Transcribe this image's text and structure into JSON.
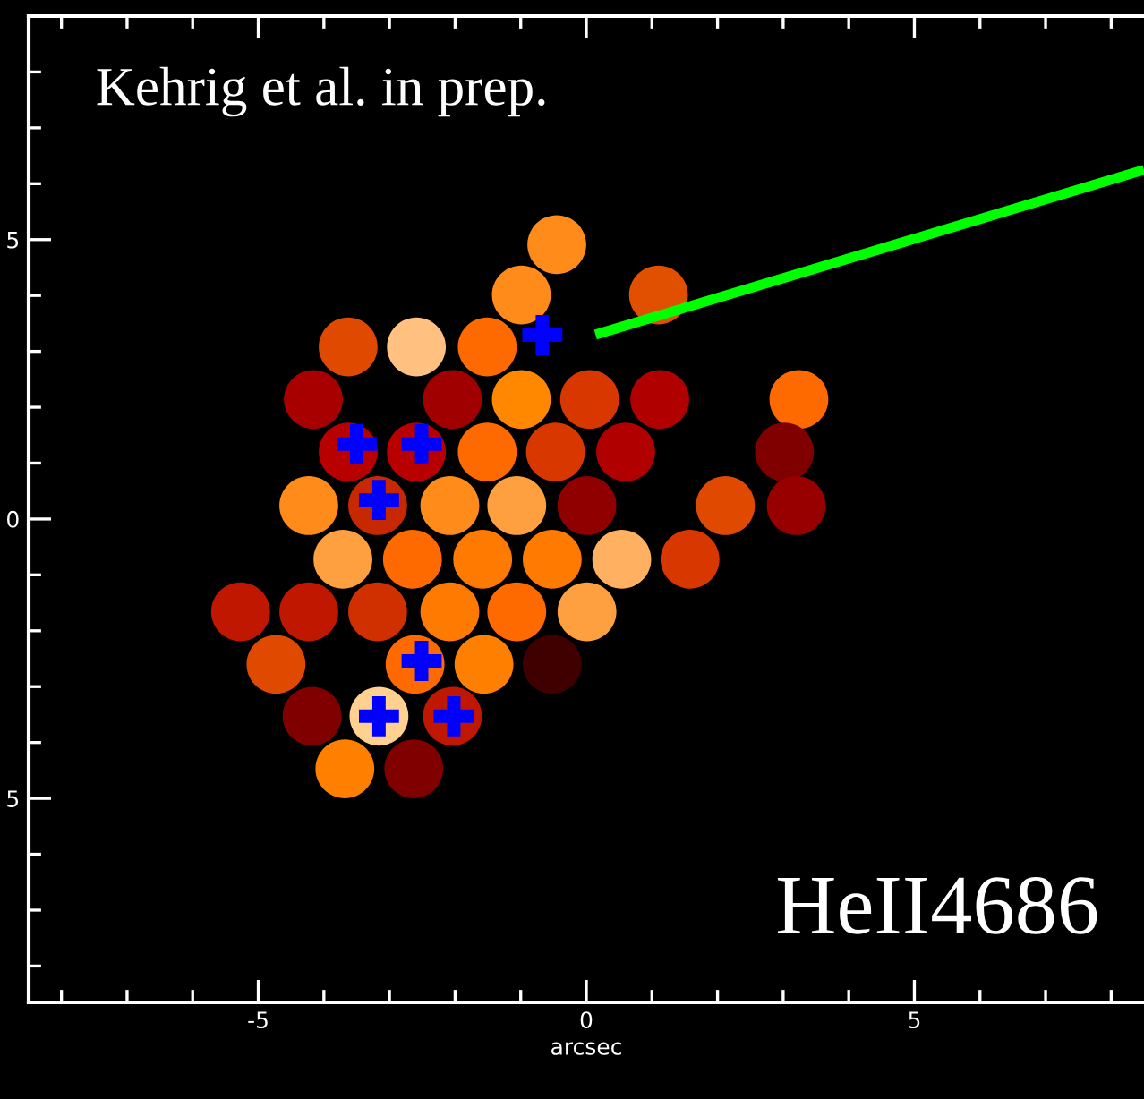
{
  "chart_data": {
    "type": "scatter",
    "xlabel": "arcsec",
    "annotations": [
      "Kehrig et al. in prep.",
      "HeII4686"
    ],
    "xlim": [
      -8.5,
      8.5
    ],
    "ylim": [
      -8.65,
      9.0
    ],
    "xticks": [
      -5,
      0,
      5
    ],
    "yticks": [
      {
        "value": 5,
        "label": "5"
      },
      0,
      {
        "value": -5,
        "label": "5"
      }
    ],
    "grid": false,
    "legend": false,
    "series": [
      {
        "marker": "circle",
        "x": [
          -0.45,
          -0.99,
          1.1,
          -3.63,
          -2.59,
          -1.51,
          -4.16,
          -2.04,
          -0.99,
          0.05,
          1.12,
          3.24,
          -3.63,
          -2.59,
          -1.51,
          -0.47,
          0.6,
          3.02,
          -4.23,
          -3.18,
          -2.08,
          -1.06,
          0.01,
          2.12,
          3.2,
          -3.71,
          -2.65,
          -1.58,
          -0.52,
          0.54,
          1.58,
          -5.27,
          -4.23,
          -3.18,
          -2.08,
          -1.06,
          0.01,
          -4.73,
          -2.61,
          -1.56,
          -0.52,
          -4.18,
          -3.16,
          -2.04,
          -3.68,
          -2.63
        ],
        "values": [
          4.91,
          4.01,
          4.01,
          3.08,
          3.08,
          3.08,
          2.14,
          2.14,
          2.14,
          2.14,
          2.14,
          2.14,
          1.2,
          1.2,
          1.2,
          1.2,
          1.2,
          1.2,
          0.24,
          0.24,
          0.24,
          0.24,
          0.24,
          0.24,
          0.24,
          -0.72,
          -0.72,
          -0.72,
          -0.72,
          -0.72,
          -0.72,
          -1.66,
          -1.66,
          -1.66,
          -1.66,
          -1.66,
          -1.66,
          -2.6,
          -2.6,
          -2.6,
          -2.6,
          -3.53,
          -3.53,
          -3.53,
          -4.47,
          -4.47
        ],
        "colors": [
          "#ff8c1a",
          "#ff8c1a",
          "#e05000",
          "#e04a00",
          "#ffc080",
          "#ff6a00",
          "#a80000",
          "#a00000",
          "#ff8800",
          "#d83800",
          "#b00000",
          "#ff6a00",
          "#b80000",
          "#b80000",
          "#ff6a00",
          "#d83800",
          "#b00000",
          "#800000",
          "#ff8c1a",
          "#c82800",
          "#ff8c1a",
          "#ffa040",
          "#900000",
          "#e04a00",
          "#980000",
          "#ffa040",
          "#ff6a00",
          "#ff7a00",
          "#ff7a00",
          "#ffb060",
          "#d83800",
          "#c01800",
          "#c01800",
          "#d03000",
          "#ff7a00",
          "#ff6a00",
          "#ffa040",
          "#e04a00",
          "#ff6a00",
          "#ff8000",
          "#400000",
          "#800000",
          "#ffd090",
          "#c01800",
          "#ff8000",
          "#800000"
        ]
      },
      {
        "type": "scatter",
        "marker": "cross",
        "color": "#0000ff",
        "x": [
          -0.67,
          -3.5,
          -2.51,
          -3.16,
          -2.51,
          -3.16,
          -2.02
        ],
        "values": [
          3.29,
          1.34,
          1.34,
          0.34,
          -2.54,
          -3.53,
          -3.53
        ]
      },
      {
        "type": "line",
        "color": "#00ff00",
        "x": [
          0.14,
          8.5
        ],
        "values": [
          3.3,
          6.25
        ]
      }
    ]
  }
}
